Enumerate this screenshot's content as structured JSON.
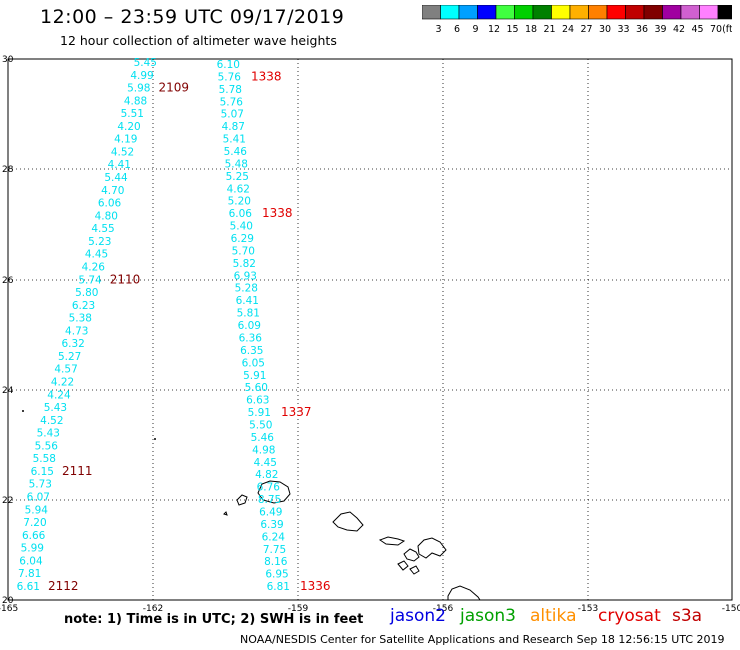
{
  "header": {
    "title": "12:00 – 23:59 UTC 09/17/2019",
    "subtitle": "12 hour collection of altimeter wave heights"
  },
  "colorbar": {
    "labels": [
      "3",
      "6",
      "9",
      "12",
      "15",
      "18",
      "21",
      "24",
      "27",
      "30",
      "33",
      "36",
      "39",
      "42",
      "45",
      "70",
      "(ft)"
    ],
    "colors": [
      "#808080",
      "#00ffff",
      "#00a0ff",
      "#0000ff",
      "#40ff40",
      "#00d000",
      "#008000",
      "#ffff00",
      "#ffb000",
      "#ff8000",
      "#ff0000",
      "#c00000",
      "#800000",
      "#a000a0",
      "#d060d0",
      "#ff80ff",
      "#000000"
    ]
  },
  "map_axes": {
    "lon_ticks": [
      "-165",
      "-162",
      "-159",
      "-156",
      "-153",
      "-150"
    ],
    "lat_ticks": [
      "30",
      "28",
      "26",
      "24",
      "22",
      "20"
    ]
  },
  "tracks": [
    {
      "name": "Track 1",
      "color": "#00e0f0",
      "values": [
        "5.45",
        "4.99",
        "5.98",
        "4.88",
        "5.51",
        "4.20",
        "4.19",
        "4.52",
        "4.41",
        "5.44",
        "4.70",
        "6.06",
        "4.80",
        "4.55",
        "5.23",
        "4.45",
        "4.26",
        "5.74",
        "5.80",
        "6.23",
        "5.38",
        "4.73",
        "6.32",
        "5.27",
        "4.57",
        "4.22",
        "4.24",
        "5.43",
        "4.52",
        "5.43",
        "5.56",
        "5.58",
        "6.15",
        "5.73",
        "6.07",
        "5.94",
        "7.20",
        "6.66",
        "5.99",
        "6.04",
        "7.81",
        "6.61"
      ],
      "times": [
        {
          "label": "2109",
          "index": 2
        },
        {
          "label": "2110",
          "index": 17
        },
        {
          "label": "2111",
          "index": 32
        },
        {
          "label": "2112",
          "index": 41
        }
      ]
    },
    {
      "name": "Track 2",
      "color": "#00e0f0",
      "values": [
        "6.10",
        "5.76",
        "5.78",
        "5.76",
        "5.07",
        "4.87",
        "5.41",
        "5.46",
        "5.48",
        "5.25",
        "4.62",
        "5.20",
        "6.06",
        "5.40",
        "6.29",
        "5.70",
        "5.82",
        "6.93",
        "5.28",
        "6.41",
        "5.81",
        "6.09",
        "6.36",
        "6.35",
        "6.05",
        "5.91",
        "5.60",
        "6.63",
        "5.91",
        "5.50",
        "5.46",
        "4.98",
        "4.45",
        "4.82",
        "6.76",
        "8.75",
        "6.49",
        "6.39",
        "6.24",
        "7.75",
        "8.16",
        "6.95",
        "6.81"
      ],
      "times": [
        {
          "label": "1338",
          "index": 1
        },
        {
          "label": "1338",
          "index": 12
        },
        {
          "label": "1337",
          "index": 28
        },
        {
          "label": "1336",
          "index": 42
        }
      ]
    }
  ],
  "satellites": [
    {
      "label": "jason2",
      "color": "#0000e0"
    },
    {
      "label": "jason3",
      "color": "#00a000"
    },
    {
      "label": "altika",
      "color": "#ff9000"
    },
    {
      "label": "cryosat",
      "color": "#e00000"
    },
    {
      "label": "s3a",
      "color": "#c00000"
    }
  ],
  "footer": {
    "note": "note: 1) Time is in UTC; 2) SWH is in feet",
    "credit": "NOAA/NESDIS Center for Satellite Applications and Research   Sep 18 12:56:15 UTC 2019"
  }
}
